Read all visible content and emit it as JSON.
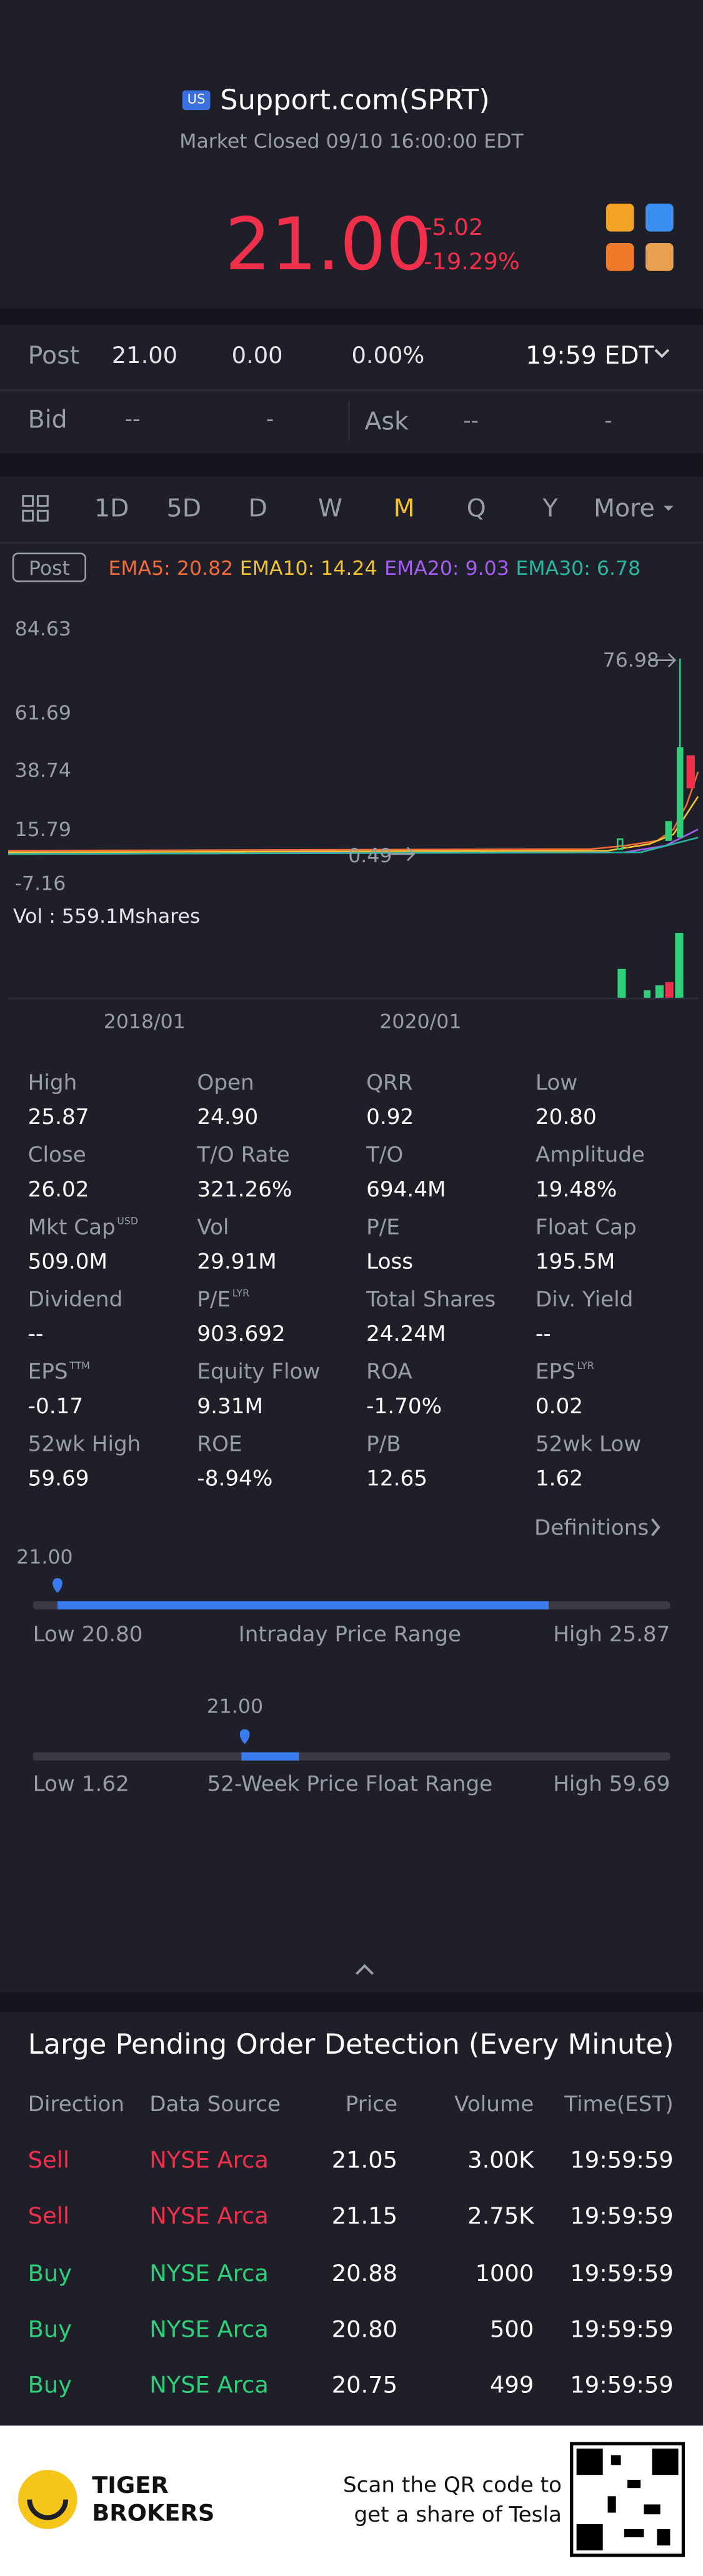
{
  "header": {
    "badge": "US",
    "title": "Support.com(SPRT)",
    "status": "Market Closed 09/10 16:00:00 EDT",
    "price": "21.00",
    "change": "-5.02",
    "change_pct": "-19.29%"
  },
  "post": {
    "label": "Post",
    "price": "21.00",
    "change": "0.00",
    "change_pct": "0.00%",
    "time": "19:59 EDT"
  },
  "quote": {
    "bid_label": "Bid",
    "bid": "--",
    "bid_size": "-",
    "ask_label": "Ask",
    "ask": "--",
    "ask_size": "-"
  },
  "tabs": {
    "items": [
      "1D",
      "5D",
      "D",
      "W",
      "M",
      "Q",
      "Y",
      "More"
    ],
    "active": 4
  },
  "chart": {
    "mode": "Post",
    "emas": [
      {
        "text": "EMA5: 20.82",
        "color": "#f06a3a"
      },
      {
        "text": "EMA10: 14.24",
        "color": "#f2c230"
      },
      {
        "text": "EMA20: 9.03",
        "color": "#a55cf0"
      },
      {
        "text": "EMA30: 6.78",
        "color": "#2bb5a0"
      }
    ],
    "y_labels": [
      "84.63",
      "61.69",
      "38.74",
      "15.79",
      "-7.16"
    ],
    "high_mark": "76.98",
    "low_mark": "0.49",
    "volume": "Vol  : 559.1Mshares",
    "x_labels": [
      "2018/01",
      "2020/01"
    ]
  },
  "stats": [
    {
      "label": "High",
      "value": "25.87"
    },
    {
      "label": "Open",
      "value": "24.90"
    },
    {
      "label": "QRR",
      "value": "0.92"
    },
    {
      "label": "Low",
      "value": "20.80"
    },
    {
      "label": "Close",
      "value": "26.02"
    },
    {
      "label": "T/O Rate",
      "value": "321.26%"
    },
    {
      "label": "T/O",
      "value": "694.4M"
    },
    {
      "label": "Amplitude",
      "value": "19.48%"
    },
    {
      "label": "Mkt Cap",
      "sup": "USD",
      "value": "509.0M"
    },
    {
      "label": "Vol",
      "value": "29.91M"
    },
    {
      "label": "P/E",
      "value": "Loss"
    },
    {
      "label": "Float Cap",
      "value": "195.5M"
    },
    {
      "label": "Dividend",
      "value": "--"
    },
    {
      "label": "P/E",
      "sup": "LYR",
      "value": "903.692"
    },
    {
      "label": "Total Shares",
      "value": "24.24M"
    },
    {
      "label": "Div. Yield",
      "value": "--"
    },
    {
      "label": "EPS",
      "sup": "TTM",
      "value": "-0.17"
    },
    {
      "label": "Equity Flow",
      "value": "9.31M"
    },
    {
      "label": "ROA",
      "value": "-1.70%"
    },
    {
      "label": "EPS",
      "sup": "LYR",
      "value": "0.02"
    },
    {
      "label": "52wk High",
      "value": "59.69"
    },
    {
      "label": "ROE",
      "value": "-8.94%"
    },
    {
      "label": "P/B",
      "value": "12.65"
    },
    {
      "label": "52wk Low",
      "value": "1.62"
    }
  ],
  "definitions": "Definitions",
  "intraday": {
    "current": "21.00",
    "low": "Low 20.80",
    "title": "Intraday Price Range",
    "high": "High 25.87"
  },
  "week52": {
    "current": "21.00",
    "low": "Low 1.62",
    "title": "52-Week Price Float Range",
    "high": "High 59.69"
  },
  "orders": {
    "title": "Large Pending Order Detection (Every Minute)",
    "headers": [
      "Direction",
      "Data Source",
      "Price",
      "Volume",
      "Time(EST)"
    ],
    "rows": [
      {
        "cells": [
          "Sell",
          "NYSE Arca",
          "21.05",
          "3.00K",
          "19:59:59"
        ],
        "color": "#f0304a"
      },
      {
        "cells": [
          "Sell",
          "NYSE Arca",
          "21.15",
          "2.75K",
          "19:59:59"
        ],
        "color": "#f0304a"
      },
      {
        "cells": [
          "Buy",
          "NYSE Arca",
          "20.88",
          "1000",
          "19:59:59"
        ],
        "color": "#2fcf7a"
      },
      {
        "cells": [
          "Buy",
          "NYSE Arca",
          "20.80",
          "500",
          "19:59:59"
        ],
        "color": "#2fcf7a"
      },
      {
        "cells": [
          "Buy",
          "NYSE Arca",
          "20.75",
          "499",
          "19:59:59"
        ],
        "color": "#2fcf7a"
      }
    ]
  },
  "footer": {
    "brand1": "TIGER",
    "brand2": "BROKERS",
    "promo1": "Scan the QR code to",
    "promo2": "get a share of Tesla"
  }
}
